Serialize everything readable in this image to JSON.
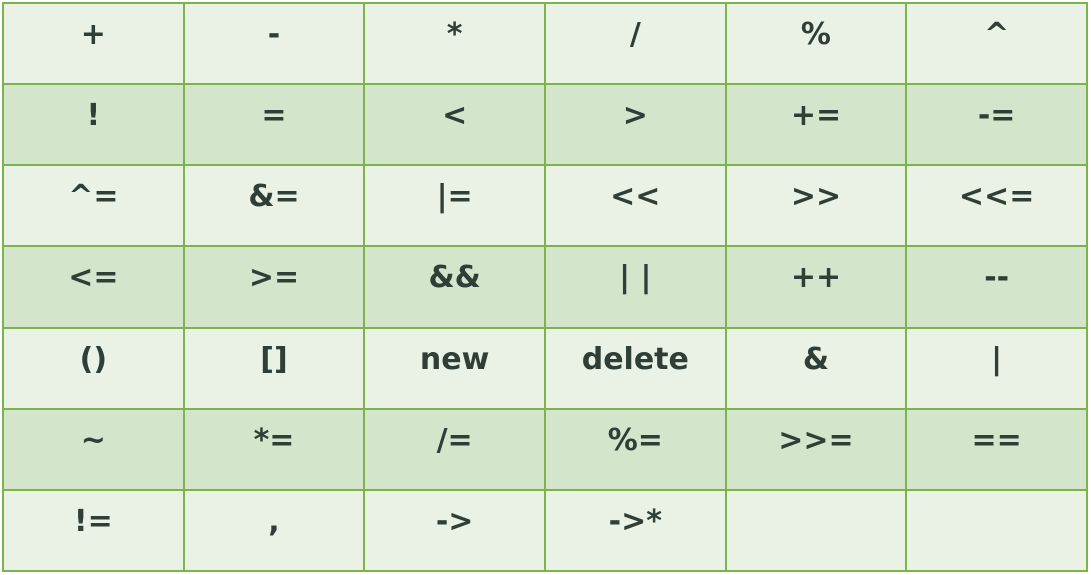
{
  "table": {
    "rows": [
      [
        "+",
        "-",
        "*",
        "/",
        "%",
        "^"
      ],
      [
        "!",
        "=",
        "<",
        ">",
        "+=",
        "-="
      ],
      [
        "^=",
        "&=",
        "|=",
        "<<",
        ">>",
        "<<="
      ],
      [
        "<=",
        ">=",
        "&&",
        "| |",
        "++",
        "--"
      ],
      [
        "()",
        "[]",
        "new",
        "delete",
        "&",
        "|"
      ],
      [
        "~",
        "*=",
        "/=",
        "%=",
        ">>=",
        "=="
      ],
      [
        "!=",
        ",",
        "->",
        "->*",
        "",
        ""
      ]
    ]
  },
  "colors": {
    "border": "#7db34c",
    "row_light": "#e9f2e4",
    "row_dark": "#d3e5ca",
    "text": "#2f3f38"
  }
}
